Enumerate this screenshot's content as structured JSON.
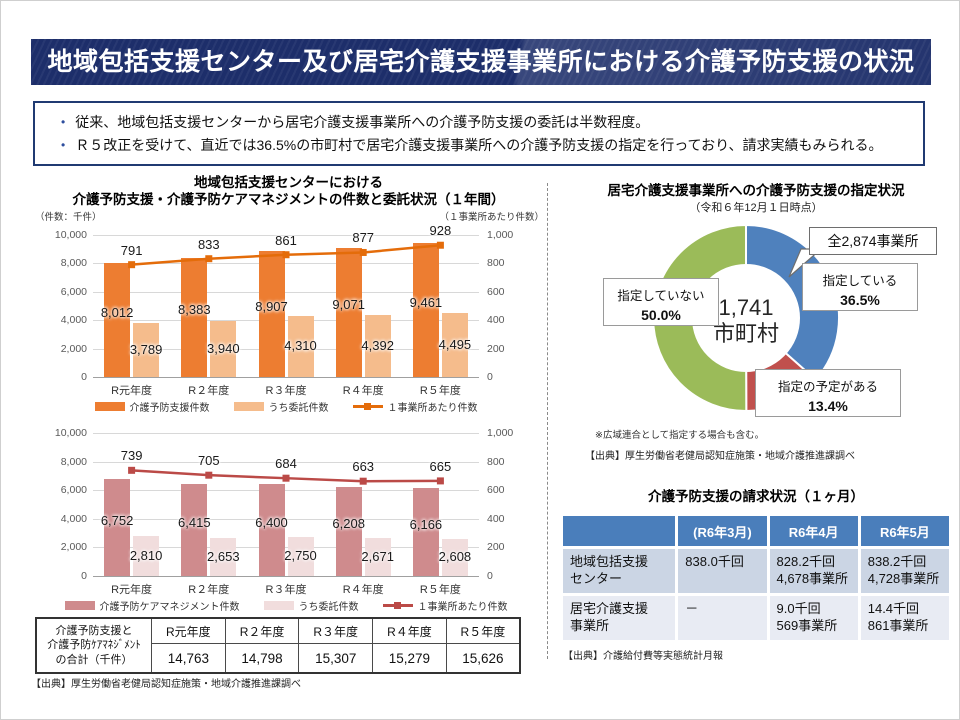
{
  "header": {
    "title": "地域包括支援センター及び居宅介護支援事業所における介護予防支援の状況",
    "bar_color": "#1d2e6a"
  },
  "summary": {
    "bullets": [
      "従来、地域包括支援センターから居宅介護支援事業所への介護予防支援の委託は半数程度。",
      "Ｒ５改正を受けて、直近では36.5%の市町村で居宅介護支援事業所への介護予防支援の指定を行っており、請求実績もみられる。"
    ]
  },
  "left_section": {
    "title_line1": "地域包括支援センターにおける",
    "title_line2": "介護予防支援・介護予防ケアマネジメントの件数と委託状況（１年間）",
    "left_axis_caption": "（件数：千件）",
    "right_axis_caption": "（１事業所あたり件数）",
    "source": "【出典】厚生労働省老健局認知症施策・地域介護推進課調べ"
  },
  "chart_data": [
    {
      "id": "prevention-support",
      "type": "bar+line",
      "categories": [
        "R元年度",
        "R２年度",
        "R３年度",
        "R４年度",
        "R５年度"
      ],
      "series": [
        {
          "name": "介護予防支援件数",
          "type": "bar",
          "axis": "left",
          "color": "#ED7D31",
          "values": [
            8012,
            8383,
            8907,
            9071,
            9461
          ],
          "labels": [
            "8,012",
            "8,383",
            "8,907",
            "9,071",
            "9,461"
          ]
        },
        {
          "name": "うち委託件数",
          "type": "bar",
          "axis": "left",
          "color": "#F5BC8C",
          "values": [
            3789,
            3940,
            4310,
            4392,
            4495
          ],
          "labels": [
            "3,789",
            "3,940",
            "4,310",
            "4,392",
            "4,495"
          ]
        },
        {
          "name": "１事業所あたり件数",
          "type": "line",
          "axis": "right",
          "color": "#E46C0A",
          "values": [
            791,
            833,
            861,
            877,
            928
          ],
          "labels": [
            "791",
            "833",
            "861",
            "877",
            "928"
          ]
        }
      ],
      "left_axis": {
        "min": 0,
        "max": 10000,
        "step": 2000
      },
      "right_axis": {
        "min": 0,
        "max": 1000,
        "step": 200
      }
    },
    {
      "id": "care-management",
      "type": "bar+line",
      "categories": [
        "R元年度",
        "R２年度",
        "R３年度",
        "R４年度",
        "R５年度"
      ],
      "series": [
        {
          "name": "介護予防ケアマネジメント件数",
          "type": "bar",
          "axis": "left",
          "color": "#CF8B8D",
          "values": [
            6752,
            6415,
            6400,
            6208,
            6166
          ],
          "labels": [
            "6,752",
            "6,415",
            "6,400",
            "6,208",
            "6,166"
          ]
        },
        {
          "name": "うち委託件数",
          "type": "bar",
          "axis": "left",
          "color": "#F1DDDD",
          "values": [
            2810,
            2653,
            2750,
            2671,
            2608
          ],
          "labels": [
            "2,810",
            "2,653",
            "2,750",
            "2,671",
            "2,608"
          ]
        },
        {
          "name": "１事業所あたり件数",
          "type": "line",
          "axis": "right",
          "color": "#BB4A47",
          "values": [
            739,
            705,
            684,
            663,
            665
          ],
          "labels": [
            "739",
            "705",
            "684",
            "663",
            "665"
          ]
        }
      ],
      "left_axis": {
        "min": 0,
        "max": 10000,
        "step": 2000
      },
      "right_axis": {
        "min": 0,
        "max": 1000,
        "step": 200
      }
    },
    {
      "id": "designation-status",
      "type": "donut",
      "title": "居宅介護支援事業所への介護予防支援の指定状況",
      "subtitle": "（令和６年12月１日時点）",
      "total_callout": "全2,874事業所",
      "center_line1": "1,741",
      "center_line2": "市町村",
      "slices": [
        {
          "label": "指定している",
          "pct": 36.5,
          "pct_label": "36.5%",
          "color": "#4F81BD"
        },
        {
          "label": "指定の予定がある",
          "pct": 13.4,
          "pct_label": "13.4%",
          "color": "#C0504D"
        },
        {
          "label": "指定していない",
          "pct": 50.0,
          "pct_label": "50.0%",
          "color": "#9BBB59"
        }
      ],
      "note": "※広域連合として指定する場合も含む。",
      "source": "【出典】厚生労働省老健局認知症施策・地域介護推進課調べ"
    }
  ],
  "annual_table": {
    "label_lines": [
      "介護予防支援と",
      "介護予防ｹｱﾏﾈｼﾞﾒﾝﾄ",
      "の合計（千件）"
    ],
    "columns": [
      "R元年度",
      "R２年度",
      "R３年度",
      "R４年度",
      "R５年度"
    ],
    "values": [
      "14,763",
      "14,798",
      "15,307",
      "15,279",
      "15,626"
    ]
  },
  "billing_table": {
    "title": "介護予防支援の請求状況（１ヶ月）",
    "header_bg": "#4A7EBB",
    "row_bg": [
      "#CBD5E4",
      "#E8EBF3"
    ],
    "columns": [
      "",
      "(R6年3月)",
      "R6年4月",
      "R6年5月"
    ],
    "rows": [
      {
        "label_lines": [
          "地域包括支援",
          "センター"
        ],
        "cells": [
          [
            "838.0千回"
          ],
          [
            "828.2千回",
            "4,678事業所"
          ],
          [
            "838.2千回",
            "4,728事業所"
          ]
        ]
      },
      {
        "label_lines": [
          "居宅介護支援",
          "事業所"
        ],
        "cells": [
          [
            "－"
          ],
          [
            "9.0千回",
            "569事業所"
          ],
          [
            "14.4千回",
            "861事業所"
          ]
        ]
      }
    ],
    "source": "【出典】介護給付費等実態統計月報"
  }
}
